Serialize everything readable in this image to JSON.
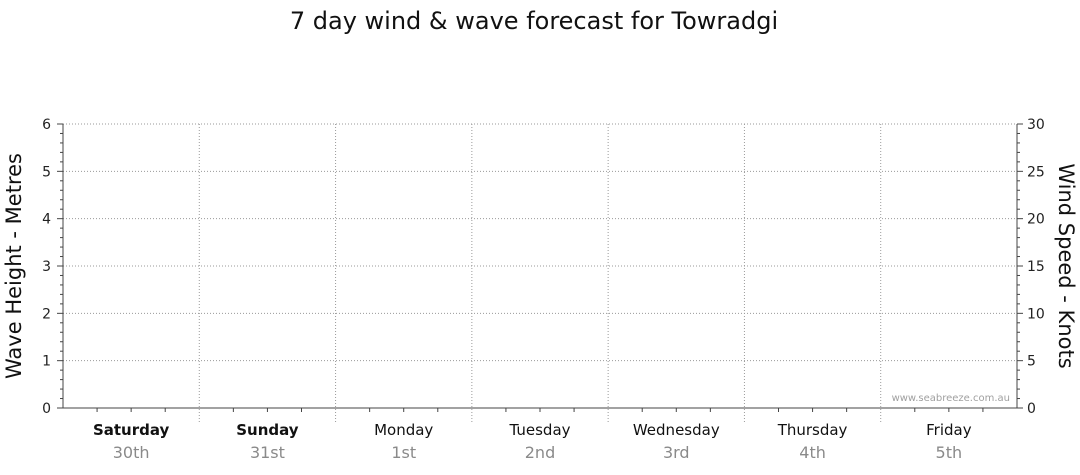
{
  "chart_data": {
    "type": "line",
    "title": "7 day wind & wave forecast for Towradgi",
    "ylabel_left": "Wave Height - Metres",
    "ylabel_right": "Wind Speed - Knots",
    "ylim_left": [
      0,
      6
    ],
    "ylim_right": [
      0,
      30
    ],
    "yticks_left": [
      "0",
      "1",
      "2",
      "3",
      "4",
      "5",
      "6"
    ],
    "yticks_right": [
      "0",
      "5",
      "10",
      "15",
      "20",
      "25",
      "30"
    ],
    "grid": true,
    "days": [
      {
        "name": "Saturday",
        "date": "30th",
        "bold": true
      },
      {
        "name": "Sunday",
        "date": "31st",
        "bold": true
      },
      {
        "name": "Monday",
        "date": "1st",
        "bold": false
      },
      {
        "name": "Tuesday",
        "date": "2nd",
        "bold": false
      },
      {
        "name": "Wednesday",
        "date": "3rd",
        "bold": false
      },
      {
        "name": "Thursday",
        "date": "4th",
        "bold": false
      },
      {
        "name": "Friday",
        "date": "5th",
        "bold": false
      }
    ],
    "series": [],
    "watermark": "www.seabreeze.com.au"
  }
}
